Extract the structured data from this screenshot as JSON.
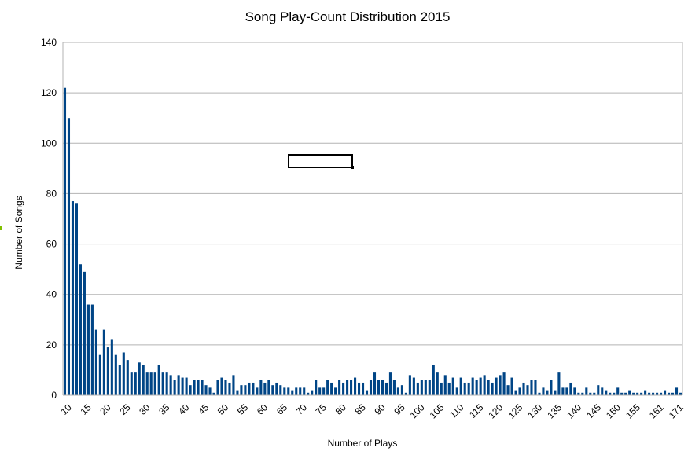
{
  "chart_data": {
    "type": "bar",
    "title": "Song Play-Count Distribution 2015",
    "xlabel": "Number of Plays",
    "ylabel": "Number of Songs",
    "ylim": [
      0,
      140
    ],
    "yticks": [
      "0",
      "20",
      "40",
      "60",
      "80",
      "100",
      "120",
      "140"
    ],
    "grid": true,
    "legend": "none",
    "bar_color": "#004586",
    "grid_color": "#b3b3b3",
    "x_tick_labels": [
      "10",
      "15",
      "20",
      "25",
      "30",
      "35",
      "40",
      "45",
      "50",
      "55",
      "60",
      "65",
      "70",
      "75",
      "80",
      "85",
      "90",
      "95",
      "100",
      "105",
      "110",
      "115",
      "120",
      "125",
      "130",
      "135",
      "140",
      "145",
      "150",
      "155",
      "161",
      "171"
    ],
    "categories": [
      "10",
      "11",
      "12",
      "13",
      "14",
      "15",
      "16",
      "17",
      "18",
      "19",
      "20",
      "21",
      "22",
      "23",
      "24",
      "25",
      "26",
      "27",
      "28",
      "29",
      "30",
      "31",
      "32",
      "33",
      "34",
      "35",
      "36",
      "37",
      "38",
      "39",
      "40",
      "41",
      "42",
      "43",
      "44",
      "45",
      "46",
      "47",
      "48",
      "49",
      "50",
      "51",
      "52",
      "53",
      "54",
      "55",
      "56",
      "57",
      "58",
      "59",
      "60",
      "61",
      "62",
      "63",
      "64",
      "65",
      "66",
      "67",
      "68",
      "69",
      "70",
      "71",
      "72",
      "73",
      "74",
      "75",
      "76",
      "77",
      "78",
      "79",
      "80",
      "81",
      "82",
      "83",
      "84",
      "85",
      "86",
      "87",
      "88",
      "89",
      "90",
      "91",
      "92",
      "93",
      "94",
      "95",
      "96",
      "97",
      "98",
      "99",
      "100",
      "101",
      "102",
      "103",
      "104",
      "105",
      "106",
      "107",
      "108",
      "109",
      "110",
      "111",
      "112",
      "113",
      "114",
      "115",
      "116",
      "117",
      "118",
      "119",
      "120",
      "121",
      "122",
      "123",
      "124",
      "125",
      "126",
      "127",
      "128",
      "129",
      "130",
      "131",
      "132",
      "133",
      "134",
      "135",
      "136",
      "137",
      "138",
      "139",
      "140",
      "141",
      "142",
      "143",
      "144",
      "145",
      "146",
      "147",
      "148",
      "149",
      "150",
      "151",
      "152",
      "153",
      "154",
      "155",
      "156",
      "157",
      "158",
      "159",
      "160",
      "161",
      "163",
      "165",
      "167",
      "169",
      "171",
      "173"
    ],
    "values": [
      122,
      110,
      77,
      76,
      52,
      49,
      36,
      36,
      26,
      16,
      26,
      19,
      22,
      16,
      12,
      17,
      14,
      9,
      9,
      13,
      12,
      9,
      9,
      9,
      12,
      9,
      9,
      8,
      6,
      8,
      7,
      7,
      4,
      6,
      6,
      6,
      4,
      3,
      1,
      6,
      7,
      6,
      5,
      8,
      2,
      4,
      4,
      5,
      5,
      3,
      6,
      5,
      6,
      4,
      5,
      4,
      3,
      3,
      2,
      3,
      3,
      3,
      1,
      2,
      6,
      3,
      3,
      6,
      5,
      3,
      6,
      5,
      6,
      6,
      7,
      5,
      5,
      2,
      6,
      9,
      6,
      6,
      5,
      9,
      6,
      3,
      4,
      1,
      8,
      7,
      5,
      6,
      6,
      6,
      12,
      9,
      5,
      8,
      5,
      7,
      3,
      7,
      5,
      5,
      7,
      6,
      7,
      8,
      6,
      5,
      7,
      8,
      9,
      4,
      7,
      2,
      3,
      5,
      4,
      6,
      6,
      1,
      3,
      2,
      6,
      2,
      9,
      3,
      3,
      5,
      3,
      1,
      1,
      3,
      1,
      1,
      4,
      3,
      2,
      1,
      1,
      3,
      1,
      1,
      2,
      1,
      1,
      1,
      2,
      1,
      1,
      1,
      1,
      2,
      1,
      1,
      3,
      1
    ]
  }
}
